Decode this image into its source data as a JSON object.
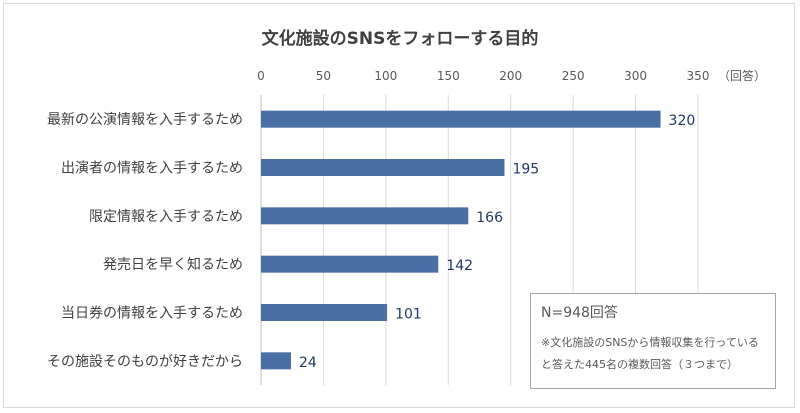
{
  "chart_data": {
    "type": "bar",
    "orientation": "horizontal",
    "title": "文化施設のSNSをフォローする目的",
    "unit_label": "（回答）",
    "categories": [
      "最新の公演情報を入手するため",
      "出演者の情報を入手するため",
      "限定情報を入手するため",
      "発売日を早く知るため",
      "当日券の情報を入手するため",
      "その施設そのものが好きだから"
    ],
    "values": [
      320,
      195,
      166,
      142,
      101,
      24
    ],
    "xlim": [
      0,
      350
    ],
    "xticks": [
      0,
      50,
      100,
      150,
      200,
      250,
      300,
      350
    ],
    "grid": true,
    "bar_color": "#4a6fa5"
  },
  "note": {
    "n_label": "N=948回答",
    "line1": "※文化施設のSNSから情報収集を行っている",
    "line2": "と答えた445名の複数回答（３つまで）"
  }
}
